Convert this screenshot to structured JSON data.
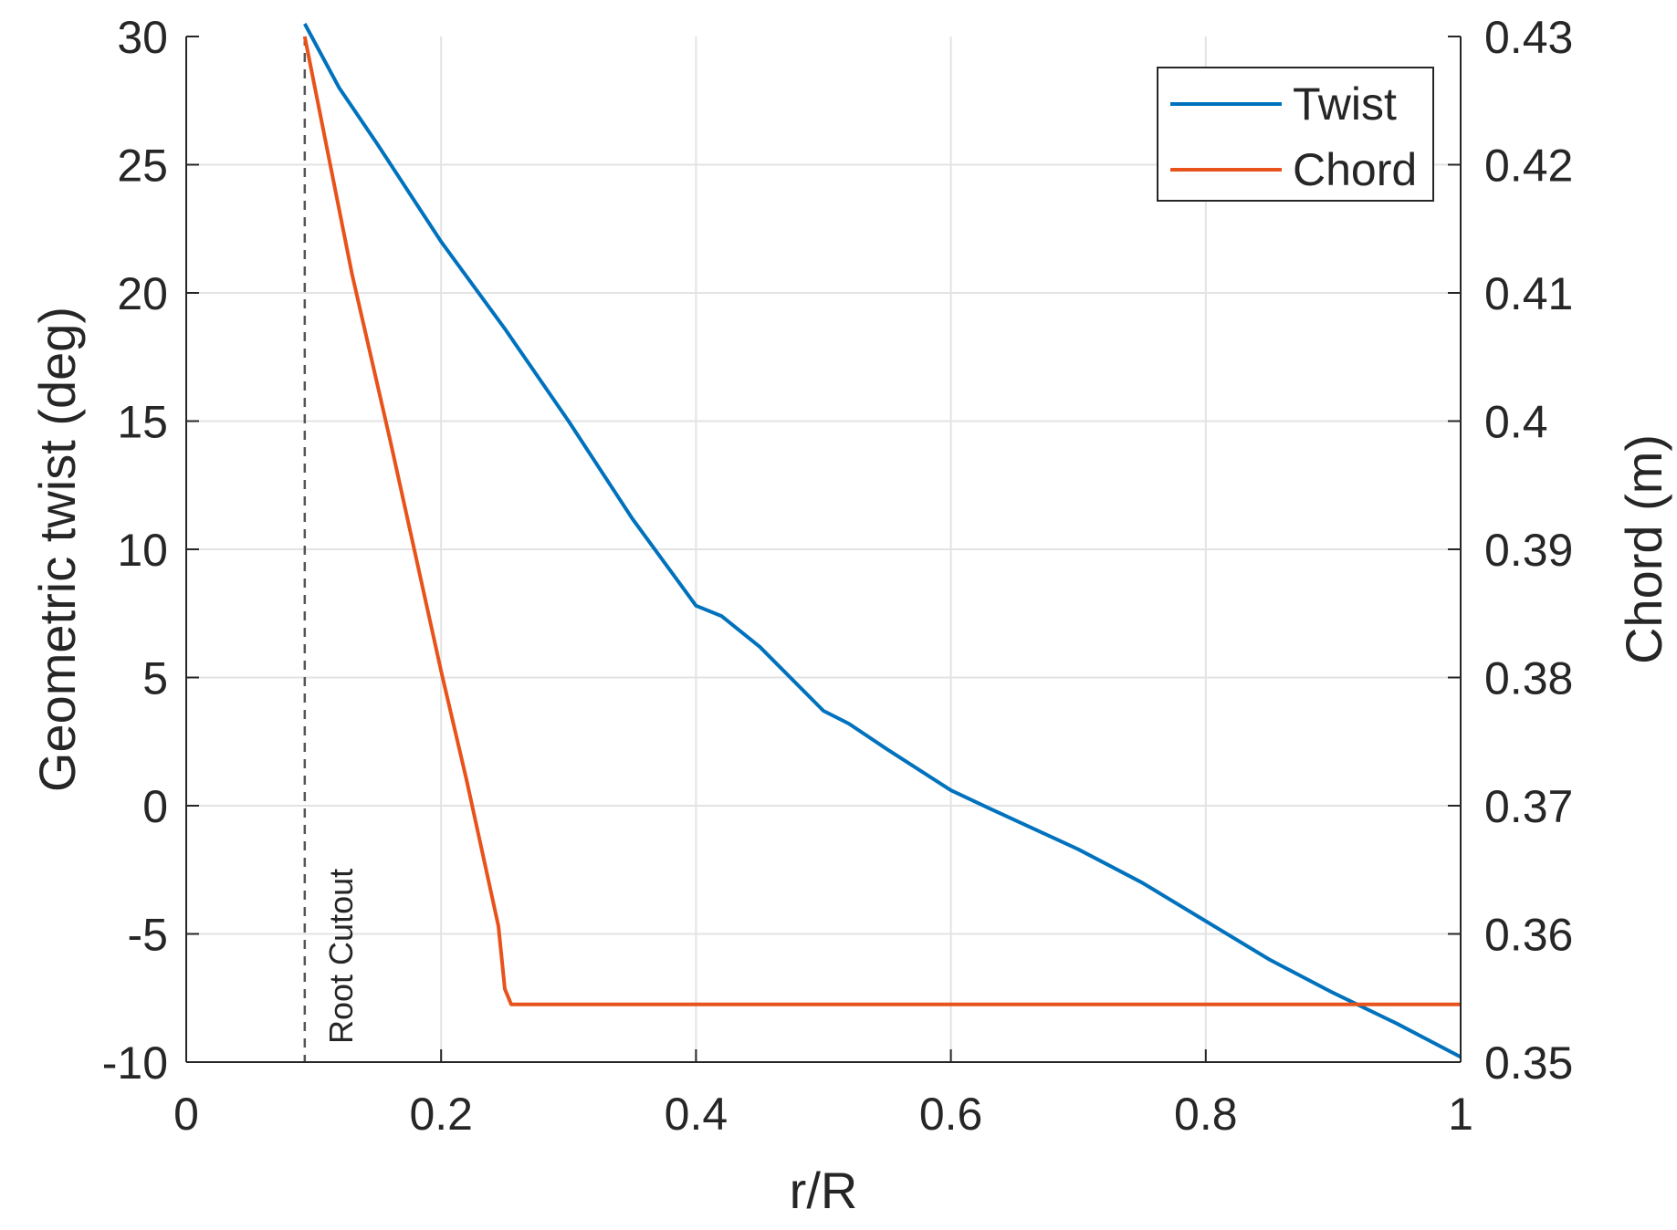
{
  "chart_data": {
    "type": "line",
    "xlabel": "r/R",
    "ylabel": "Geometric twist (deg)",
    "y2label": "Chord (m)",
    "xlim": [
      0,
      1
    ],
    "ylim": [
      -10,
      30
    ],
    "y2lim": [
      0.35,
      0.43
    ],
    "xticks": [
      "0",
      "0.2",
      "0.4",
      "0.6",
      "0.8",
      "1"
    ],
    "yticks": [
      "-10",
      "-5",
      "0",
      "5",
      "10",
      "15",
      "20",
      "25",
      "30"
    ],
    "y2ticks": [
      "0.35",
      "0.36",
      "0.37",
      "0.38",
      "0.39",
      "0.4",
      "0.41",
      "0.42",
      "0.43"
    ],
    "grid": true,
    "legend_position": "top-right",
    "series": [
      {
        "name": "Twist",
        "axis": "left",
        "color": "#0072BD",
        "x": [
          0.093,
          0.12,
          0.15,
          0.2,
          0.25,
          0.3,
          0.35,
          0.4,
          0.42,
          0.45,
          0.5,
          0.52,
          0.55,
          0.6,
          0.63,
          0.7,
          0.75,
          0.8,
          0.85,
          0.9,
          0.95,
          1.0
        ],
        "y": [
          30.5,
          28.0,
          25.8,
          22.0,
          18.6,
          15.0,
          11.2,
          7.8,
          7.4,
          6.2,
          3.7,
          3.2,
          2.2,
          0.6,
          -0.1,
          -1.7,
          -3.0,
          -4.5,
          -6.0,
          -7.3,
          -8.5,
          -9.8
        ]
      },
      {
        "name": "Chord",
        "axis": "right",
        "color": "#E8521B",
        "x": [
          0.093,
          0.13,
          0.16,
          0.2,
          0.22,
          0.245,
          0.25,
          0.255,
          0.26,
          0.3,
          0.4,
          0.5,
          0.6,
          0.7,
          0.8,
          0.9,
          1.0
        ],
        "y": [
          0.43,
          0.4115,
          0.3985,
          0.3805,
          0.372,
          0.3606,
          0.3557,
          0.3545,
          0.3545,
          0.3545,
          0.3545,
          0.3545,
          0.3545,
          0.3545,
          0.3545,
          0.3545,
          0.3545
        ]
      }
    ],
    "reference_lines": [
      {
        "x": 0.093,
        "style": "dashed",
        "color": "#555555",
        "label": "Root Cutout"
      }
    ]
  }
}
